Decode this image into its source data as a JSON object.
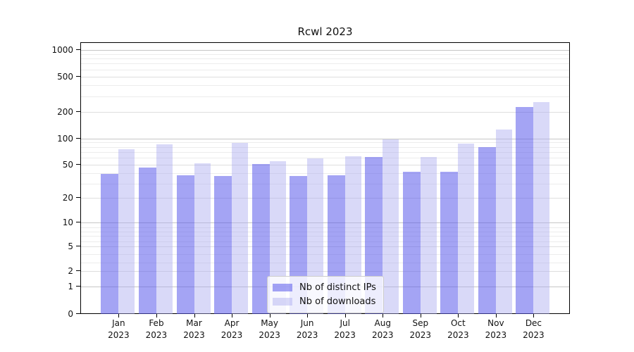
{
  "figure": {
    "background": "#ffffff",
    "spine_color": "#000000",
    "text_color": "#111111"
  },
  "chart_data": {
    "type": "bar",
    "title": "Rcwl 2023",
    "scale": "log1p",
    "xlabel": "",
    "ylabel": "",
    "categories": [
      "Jan",
      "Feb",
      "Mar",
      "Apr",
      "May",
      "Jun",
      "Jul",
      "Aug",
      "Sep",
      "Oct",
      "Nov",
      "Dec"
    ],
    "year_label": "2023",
    "series": [
      {
        "name": "Nb of distinct IPs",
        "color": "rgba(90,90,235,0.55)",
        "approx_hex": "#a4a4f1",
        "values": [
          39,
          46,
          38,
          37,
          51,
          37,
          38,
          61,
          41,
          41,
          79,
          225
        ]
      },
      {
        "name": "Nb of downloads",
        "color": "rgba(170,170,240,0.45)",
        "approx_hex": "#d8d8f6",
        "values": [
          75,
          86,
          52,
          89,
          55,
          59,
          62,
          97,
          61,
          87,
          126,
          260
        ]
      }
    ],
    "y_ticks": [
      0,
      1,
      2,
      5,
      10,
      20,
      50,
      100,
      200,
      500,
      1000
    ],
    "y_minor_ticks": [
      3,
      4,
      6,
      7,
      8,
      9,
      30,
      40,
      60,
      70,
      80,
      90,
      300,
      400,
      600,
      700,
      800,
      900
    ],
    "ylim": [
      0,
      1200
    ],
    "grid": {
      "enabled": true,
      "major_color": "#c6c6c6",
      "mid_color": "#dedede",
      "minor_color": "#ececec"
    },
    "legend": {
      "position": "bottom-center",
      "background": "rgba(255,255,255,0.8)",
      "border_color": "#cccccc"
    }
  }
}
